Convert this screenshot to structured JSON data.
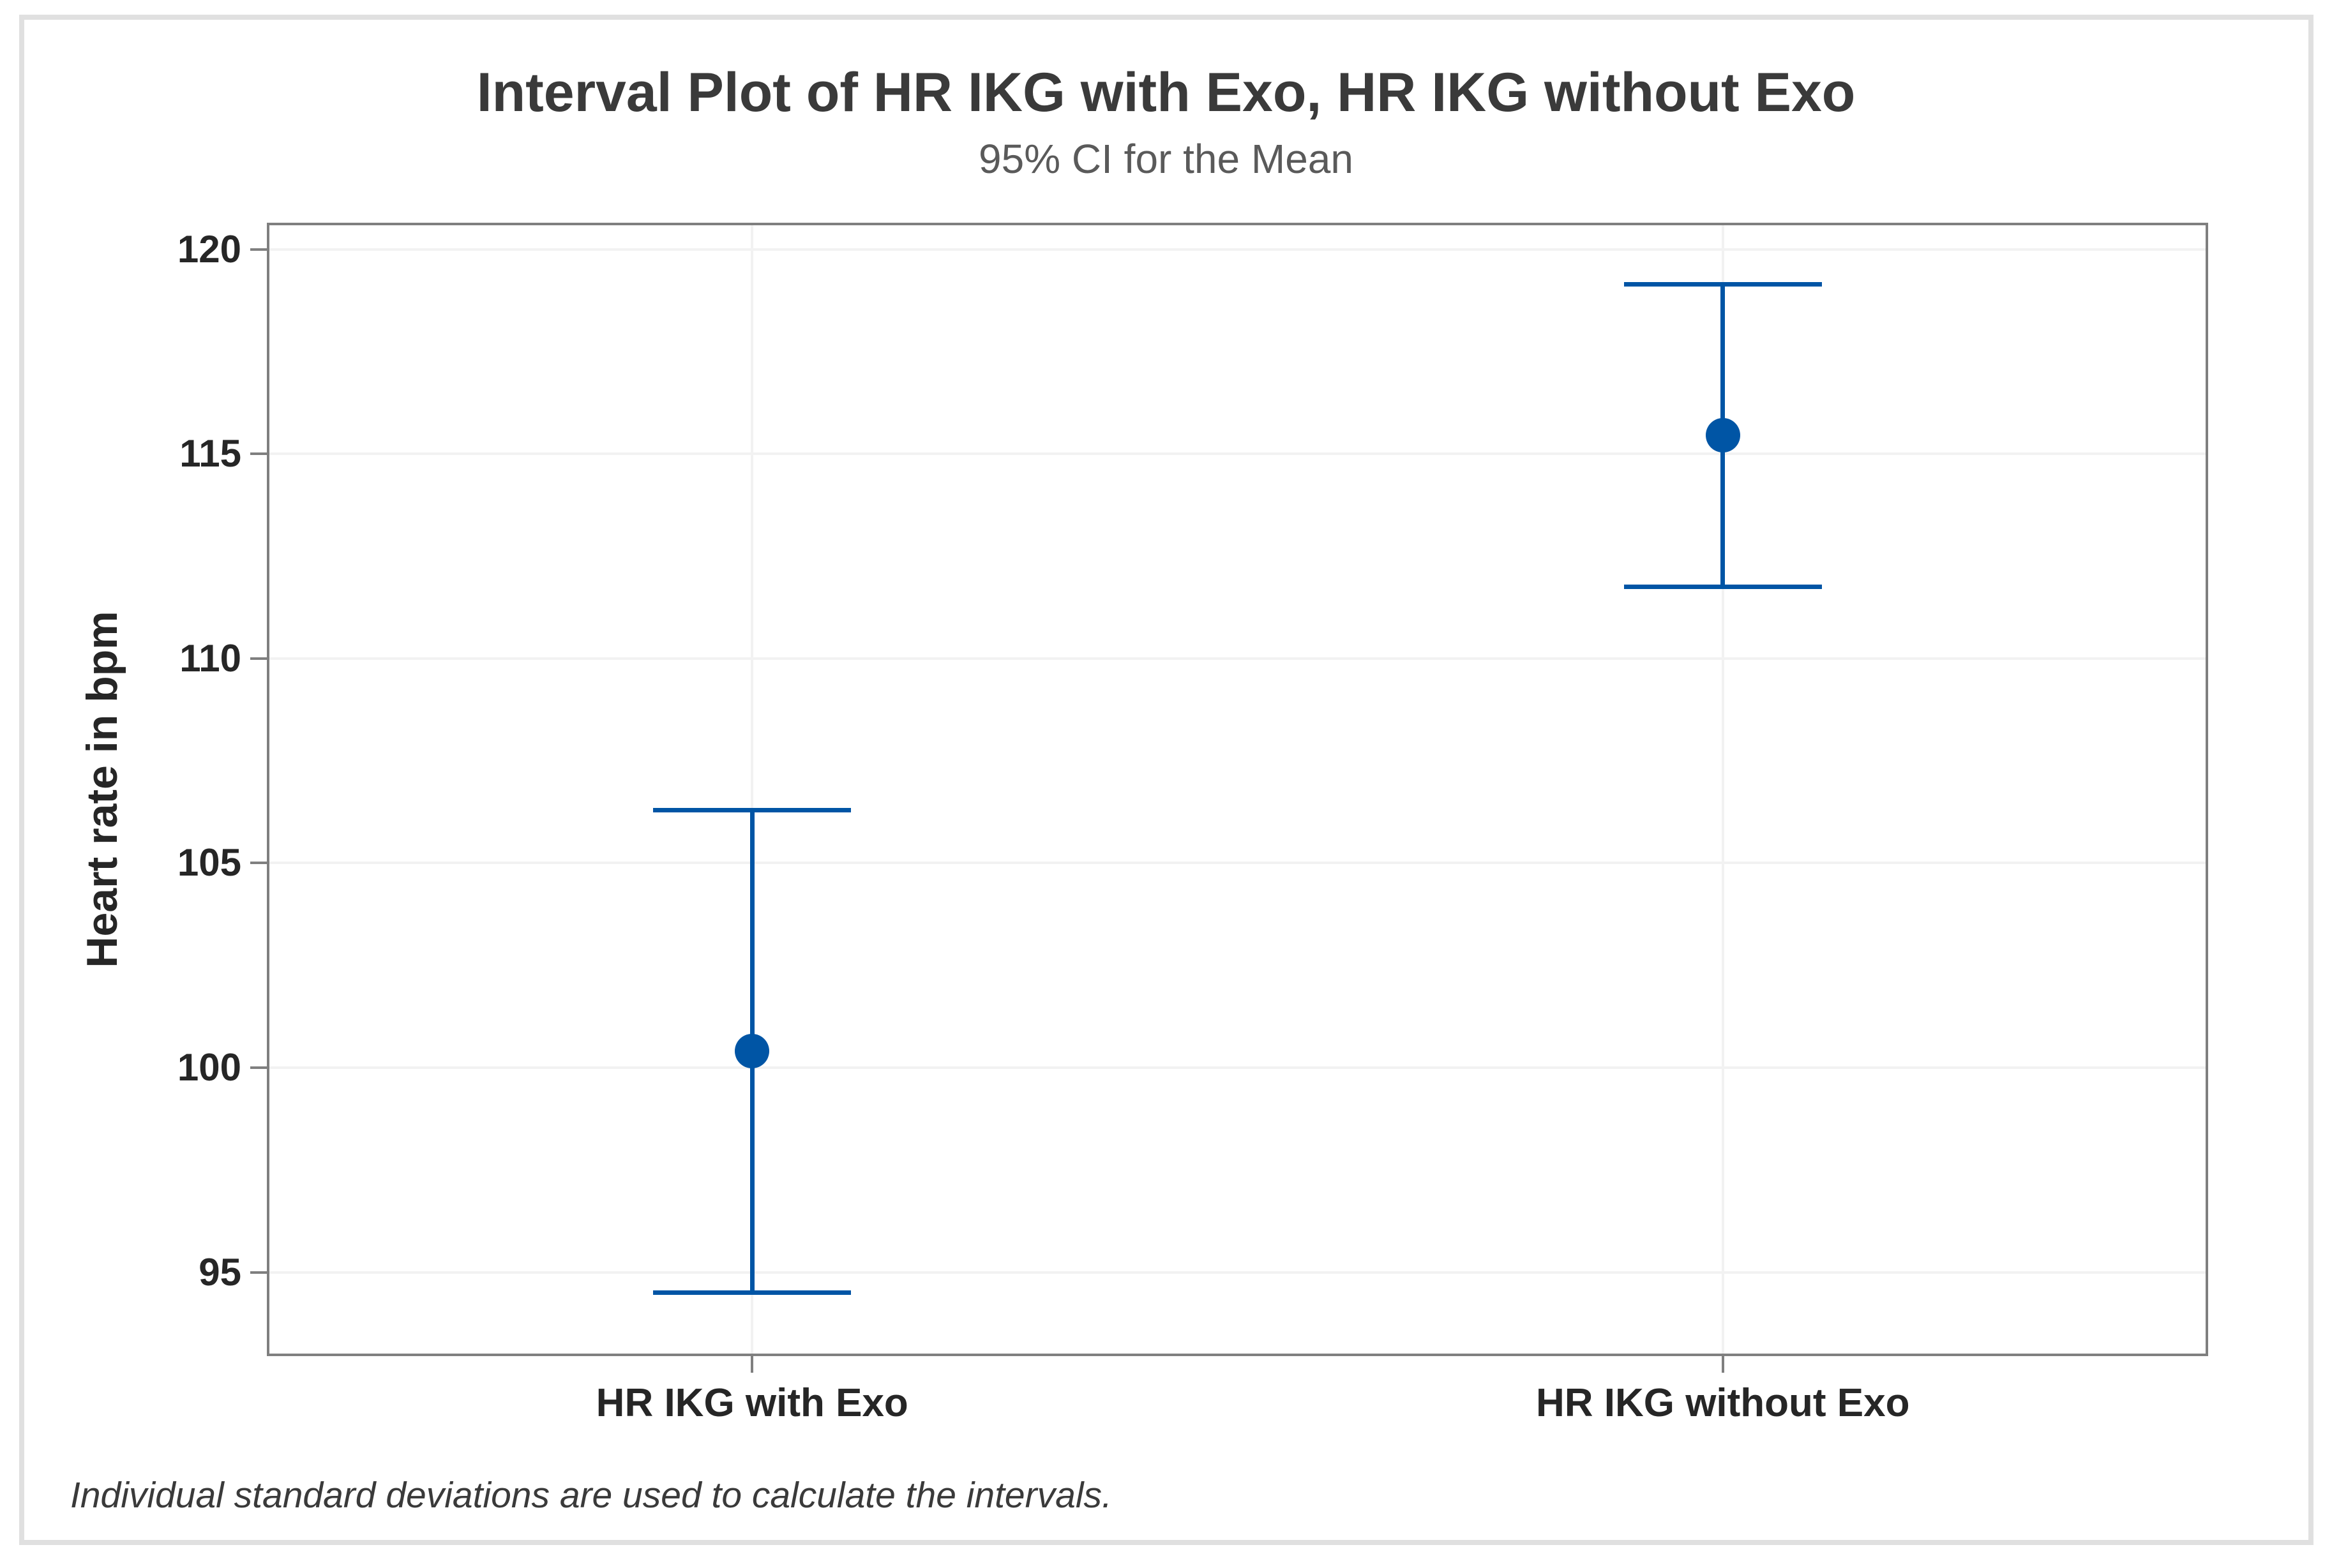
{
  "figure": {
    "title": "Interval Plot of HR IKG with Exo, HR IKG without Exo",
    "subtitle": "95% CI for the Mean",
    "footnote": "Individual standard deviations are used to calculate the intervals."
  },
  "axes": {
    "y_label": "Heart rate in bpm",
    "y_tick_labels": [
      "120",
      "115",
      "110",
      "105",
      "100",
      "95"
    ],
    "x_category_labels": [
      "HR IKG with Exo",
      "HR IKG without Exo"
    ]
  },
  "colors": {
    "interval_blue": "#0055a5",
    "plot_border_gray": "#7f7f7f",
    "gridline_gray": "#f2f2f2",
    "frame_gray": "#e0e0e0",
    "title_gray": "#3a3a3a",
    "subtitle_gray": "#5a5a5a",
    "label_dark": "#262626"
  },
  "chart_data": {
    "type": "interval",
    "title": "Interval Plot of HR IKG with Exo, HR IKG without Exo",
    "subtitle": "95% CI for the Mean",
    "confidence_level": "95% CI for the Mean",
    "categories": [
      "HR IKG with Exo",
      "HR IKG without Exo"
    ],
    "means": [
      100.4,
      115.45
    ],
    "ci_lower": [
      94.5,
      111.75
    ],
    "ci_upper": [
      106.3,
      119.15
    ],
    "xlabel": "",
    "ylabel": "Heart rate in bpm",
    "yticks": [
      120,
      115,
      110,
      105,
      100,
      95
    ],
    "ylim": [
      92.95,
      120.65
    ],
    "grid": "horizontal gridlines at y ticks, vertical gridline at each category",
    "legend": "none",
    "marker": "filled circle at mean with T-style error bar caps",
    "footnote": "Individual standard deviations are used to calculate the intervals."
  }
}
